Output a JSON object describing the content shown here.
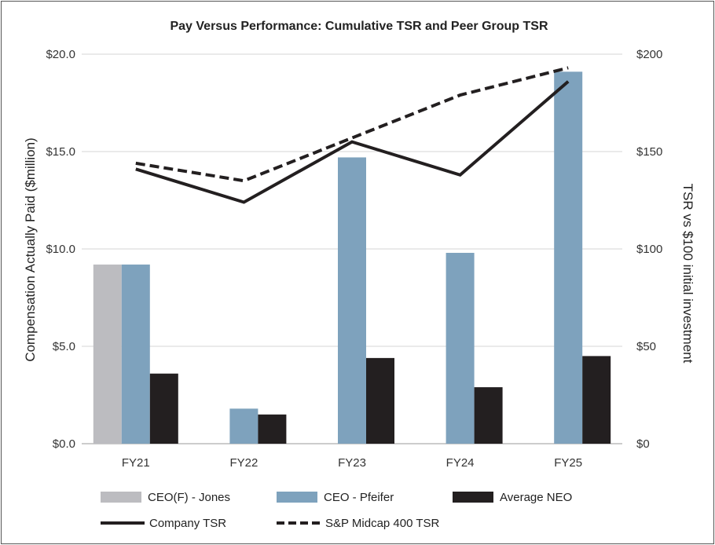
{
  "chart_data": {
    "type": "bar",
    "title": "Pay Versus Performance: Cumulative TSR and Peer Group TSR",
    "categories": [
      "FY21",
      "FY22",
      "FY23",
      "FY24",
      "FY25"
    ],
    "ylabel": "Compensation Actually Paid ($million)",
    "y2label": "TSR vs $100 initial investment",
    "ylim": [
      0,
      20
    ],
    "y2lim": [
      0,
      200
    ],
    "yticks": [
      "$0.0",
      "$5.0",
      "$10.0",
      "$15.0",
      "$20.0"
    ],
    "y2ticks": [
      "$0",
      "$50",
      "$100",
      "$150",
      "$200"
    ],
    "grid": true,
    "legend_position": "bottom",
    "series": [
      {
        "name": "CEO(F) - Jones",
        "kind": "bar",
        "color": "#bcbcc0",
        "values": [
          9.2,
          null,
          null,
          null,
          null
        ]
      },
      {
        "name": "CEO - Pfeifer",
        "kind": "bar",
        "color": "#7ea2bd",
        "values": [
          9.2,
          1.8,
          14.7,
          9.8,
          19.1
        ]
      },
      {
        "name": "Average NEO",
        "kind": "bar",
        "color": "#231f20",
        "values": [
          3.6,
          1.5,
          4.4,
          2.9,
          4.5
        ]
      },
      {
        "name": "Company TSR",
        "kind": "line",
        "axis": "right",
        "color": "#231f20",
        "dash": "solid",
        "values": [
          141,
          124,
          155,
          138,
          186
        ]
      },
      {
        "name": "S&P Midcap 400 TSR",
        "kind": "line",
        "axis": "right",
        "color": "#231f20",
        "dash": "dashed",
        "values": [
          144,
          135,
          157,
          179,
          193
        ]
      }
    ]
  }
}
